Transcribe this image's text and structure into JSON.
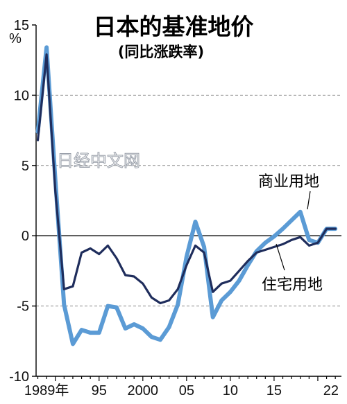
{
  "chart_data": {
    "type": "line",
    "title": "日本的基准地价",
    "subtitle": "(同比涨跌率)",
    "unit": "%",
    "x": [
      1988,
      1989,
      1990,
      1991,
      1992,
      1993,
      1994,
      1995,
      1996,
      1997,
      1998,
      1999,
      2000,
      2001,
      2002,
      2003,
      2004,
      2005,
      2006,
      2007,
      2008,
      2009,
      2010,
      2011,
      2012,
      2013,
      2014,
      2015,
      2016,
      2017,
      2018,
      2019,
      2020,
      2021,
      2022
    ],
    "x_tick_labels": [
      {
        "x": 1989,
        "label": "1989年"
      },
      {
        "x": 1995,
        "label": "95"
      },
      {
        "x": 2000,
        "label": "2000"
      },
      {
        "x": 2005,
        "label": "05"
      },
      {
        "x": 2010,
        "label": "10"
      },
      {
        "x": 2015,
        "label": "15"
      },
      {
        "x": 2021.5,
        "label": "22"
      }
    ],
    "y_ticks": [
      15,
      10,
      5,
      0,
      -5,
      -10
    ],
    "y_tick_labels": [
      "15",
      "10",
      "5",
      "0",
      "-5",
      "-10"
    ],
    "ylim": [
      -10,
      15
    ],
    "xlim": [
      1987.8,
      2022.7
    ],
    "grid": "dashed horizontal at 10 and 5 and -5; solid horizontal at 0",
    "series": [
      {
        "name": "商业用地",
        "color": "#5b9bd5",
        "values": [
          7.4,
          13.4,
          4.0,
          -4.9,
          -7.7,
          -6.7,
          -6.9,
          -6.9,
          -5.0,
          -5.1,
          -6.6,
          -6.3,
          -6.6,
          -7.2,
          -7.4,
          -6.5,
          -4.9,
          -1.5,
          1.0,
          -0.8,
          -5.8,
          -4.6,
          -4.0,
          -3.2,
          -2.1,
          -1.1,
          -0.5,
          -0.05,
          0.5,
          1.1,
          1.7,
          -0.3,
          -0.5,
          0.5,
          0.5
        ]
      },
      {
        "name": "住宅用地",
        "color": "#1f2d5c",
        "values": [
          6.8,
          12.9,
          3.2,
          -3.8,
          -3.6,
          -1.2,
          -0.9,
          -1.3,
          -0.7,
          -1.6,
          -2.8,
          -2.9,
          -3.4,
          -4.4,
          -4.8,
          -4.6,
          -3.8,
          -2.1,
          -0.7,
          -1.2,
          -4.0,
          -3.4,
          -3.2,
          -2.5,
          -1.8,
          -1.2,
          -1.0,
          -0.8,
          -0.6,
          -0.3,
          -0.1,
          -0.7,
          -0.5,
          0.5,
          0.5
        ]
      }
    ],
    "annotations": [
      {
        "text": "商业用地",
        "series": "商业用地"
      },
      {
        "text": "住宅用地",
        "series": "住宅用地"
      }
    ]
  },
  "watermark": {
    "text": "日经中文网"
  }
}
